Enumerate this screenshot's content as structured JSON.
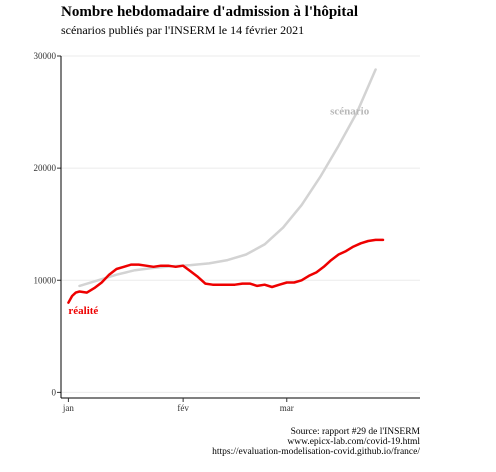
{
  "title": "Nombre hebdomadaire d'admission à l'hôpital",
  "subtitle": "scénarios publiés par l'INSERM le 14 février 2021",
  "captions": [
    "Source: rapport #29 de l'INSERM",
    "www.epicx-lab.com/covid-19.html",
    "https://evaluation-modelisation-covid.github.io/france/"
  ],
  "colors": {
    "scenario": "#d3d3d3",
    "realite": "#ee0000",
    "scenario_label": "#b8b8b8",
    "grid": "#ebebeb"
  },
  "chart_data": {
    "type": "line",
    "title": "Nombre hebdomadaire d'admission à l'hôpital",
    "subtitle": "scénarios publiés par l'INSERM le 14 février 2021",
    "xlabel": "",
    "ylabel": "",
    "x_ticks": [
      "jan",
      "fév",
      "mar"
    ],
    "x_tick_dates": [
      "2021-01-01",
      "2021-02-01",
      "2021-03-01"
    ],
    "xlim": [
      "2020-12-30",
      "2021-04-06"
    ],
    "y_ticks": [
      0,
      10000,
      20000,
      30000
    ],
    "y_tick_labels": [
      "0",
      "10000",
      "20000",
      "30000"
    ],
    "ylim": [
      -500,
      30000
    ],
    "grid": "horizontal",
    "series": [
      {
        "name": "scénario",
        "color": "#d3d3d3",
        "x": [
          "2021-01-04",
          "2021-01-09",
          "2021-01-14",
          "2021-01-19",
          "2021-01-24",
          "2021-01-29",
          "2021-02-03",
          "2021-02-08",
          "2021-02-13",
          "2021-02-18",
          "2021-02-23",
          "2021-02-28",
          "2021-03-05",
          "2021-03-10",
          "2021-03-15",
          "2021-03-20",
          "2021-03-25"
        ],
        "values": [
          9500,
          10000,
          10500,
          10900,
          11100,
          11250,
          11350,
          11500,
          11800,
          12300,
          13200,
          14700,
          16700,
          19200,
          22000,
          25000,
          28800
        ]
      },
      {
        "name": "réalité",
        "color": "#ee0000",
        "x": [
          "2021-01-01",
          "2021-01-02",
          "2021-01-03",
          "2021-01-04",
          "2021-01-06",
          "2021-01-08",
          "2021-01-10",
          "2021-01-12",
          "2021-01-14",
          "2021-01-16",
          "2021-01-18",
          "2021-01-20",
          "2021-01-22",
          "2021-01-24",
          "2021-01-26",
          "2021-01-28",
          "2021-01-30",
          "2021-02-01",
          "2021-02-03",
          "2021-02-05",
          "2021-02-07",
          "2021-02-09",
          "2021-02-11",
          "2021-02-13",
          "2021-02-15",
          "2021-02-17",
          "2021-02-19",
          "2021-02-21",
          "2021-02-23",
          "2021-02-25",
          "2021-02-27",
          "2021-03-01",
          "2021-03-03",
          "2021-03-05",
          "2021-03-07",
          "2021-03-09",
          "2021-03-11",
          "2021-03-13",
          "2021-03-15",
          "2021-03-17",
          "2021-03-19",
          "2021-03-21",
          "2021-03-23",
          "2021-03-25",
          "2021-03-27"
        ],
        "values": [
          8000,
          8600,
          8900,
          9000,
          8900,
          9300,
          9800,
          10500,
          11000,
          11200,
          11400,
          11400,
          11300,
          11200,
          11300,
          11300,
          11200,
          11300,
          10800,
          10300,
          9700,
          9600,
          9600,
          9600,
          9600,
          9700,
          9700,
          9500,
          9600,
          9400,
          9600,
          9800,
          9800,
          10000,
          10400,
          10700,
          11200,
          11800,
          12300,
          12600,
          13000,
          13300,
          13500,
          13600,
          13600
        ]
      }
    ],
    "annotations": [
      {
        "text": "scénario",
        "x": "2021-03-18",
        "y": 24800,
        "color": "#b8b8b8"
      },
      {
        "text": "réalité",
        "x": "2021-01-01",
        "y": 7000,
        "color": "#ee0000"
      }
    ]
  }
}
